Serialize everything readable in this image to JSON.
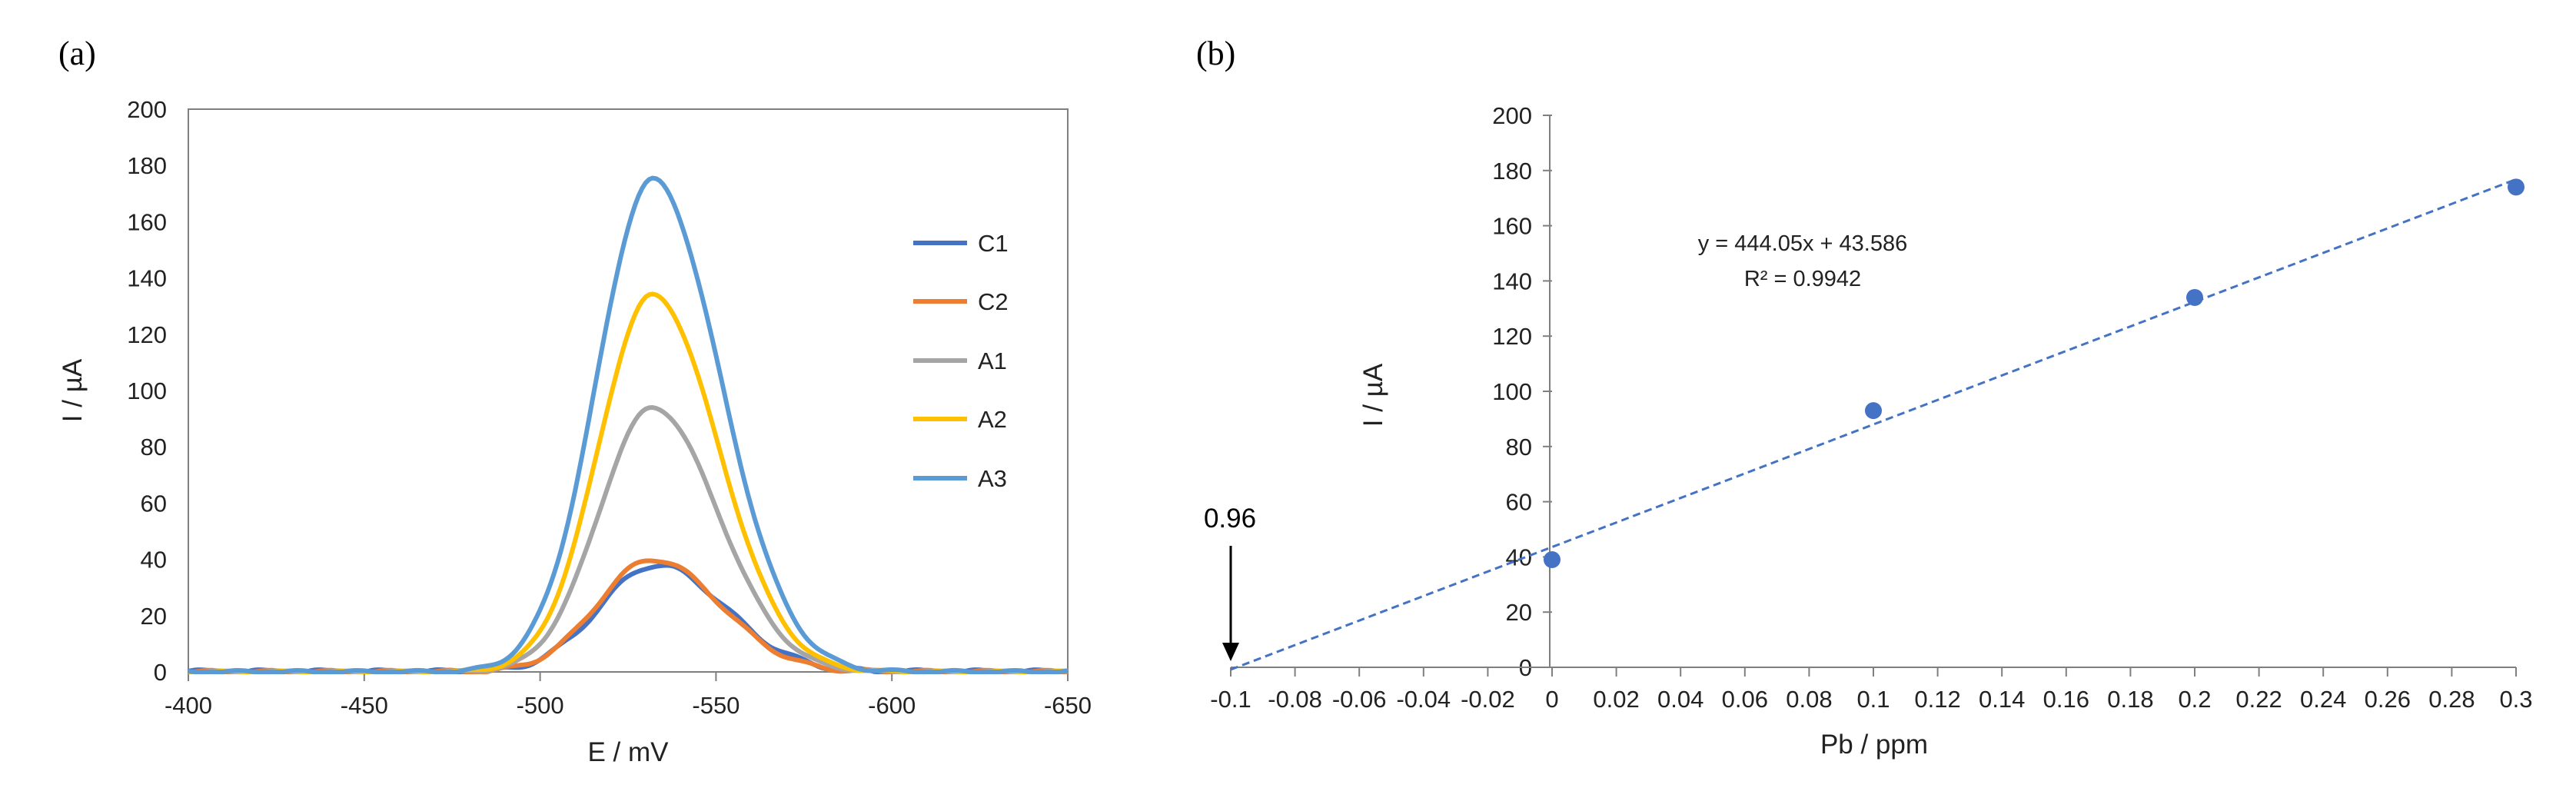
{
  "panels": {
    "a_label": "(a)",
    "b_label": "(b)"
  },
  "chart_data": [
    {
      "type": "line",
      "title": "",
      "xlabel": "E / mV",
      "ylabel": "I / µA",
      "xlim": [
        -400,
        -650
      ],
      "ylim": [
        0,
        200
      ],
      "x_ticks": [
        -400,
        -450,
        -500,
        -550,
        -600,
        -650
      ],
      "y_ticks": [
        0,
        20,
        40,
        60,
        80,
        100,
        120,
        140,
        160,
        180,
        200
      ],
      "legend_position": "right",
      "series": [
        {
          "name": "C1",
          "color": "#4472c4",
          "peak": 38,
          "center": -533,
          "sigma": 17.5,
          "baseline_noise": 1.0
        },
        {
          "name": "C2",
          "color": "#ed7d31",
          "peak": 40,
          "center": -532,
          "sigma": 17.0,
          "baseline_noise": 0.8
        },
        {
          "name": "A1",
          "color": "#a5a5a5",
          "peak": 94,
          "center": -532,
          "sigma": 16.5,
          "baseline_noise": 0.5
        },
        {
          "name": "A2",
          "color": "#ffc000",
          "peak": 134,
          "center": -532,
          "sigma": 16.5,
          "baseline_noise": 0.5
        },
        {
          "name": "A3",
          "color": "#5b9bd5",
          "peak": 175,
          "center": -532,
          "sigma": 17.0,
          "baseline_noise": 0.7
        }
      ]
    },
    {
      "type": "scatter",
      "title": "",
      "xlabel": "Pb / ppm",
      "ylabel": "I / µA",
      "xlim": [
        -0.1,
        0.3
      ],
      "ylim": [
        0,
        200
      ],
      "x_ticks": [
        "-0.1",
        "-0.08",
        "-0.06",
        "-0.04",
        "-0.02",
        "0",
        "0.02",
        "0.04",
        "0.06",
        "0.08",
        "0.1",
        "0.12",
        "0.14",
        "0.16",
        "0.18",
        "0.2",
        "0.22",
        "0.24",
        "0.26",
        "0.28",
        "0.3"
      ],
      "y_ticks": [
        0,
        20,
        40,
        60,
        80,
        100,
        120,
        140,
        160,
        180,
        200
      ],
      "points": {
        "x": [
          0,
          0.1,
          0.2,
          0.3
        ],
        "y": [
          39,
          93,
          134,
          174
        ]
      },
      "point_color": "#4472c4",
      "trendline": {
        "slope": 444.05,
        "intercept": 43.586,
        "x_range": [
          -0.1,
          0.3
        ],
        "style": "dashed",
        "color": "#4472c4"
      },
      "equation": "y = 444.05x + 43.586",
      "r_squared": "R² = 0.9942",
      "annotation": {
        "text": "0.96",
        "x": -0.1,
        "arrow": "down"
      }
    }
  ]
}
